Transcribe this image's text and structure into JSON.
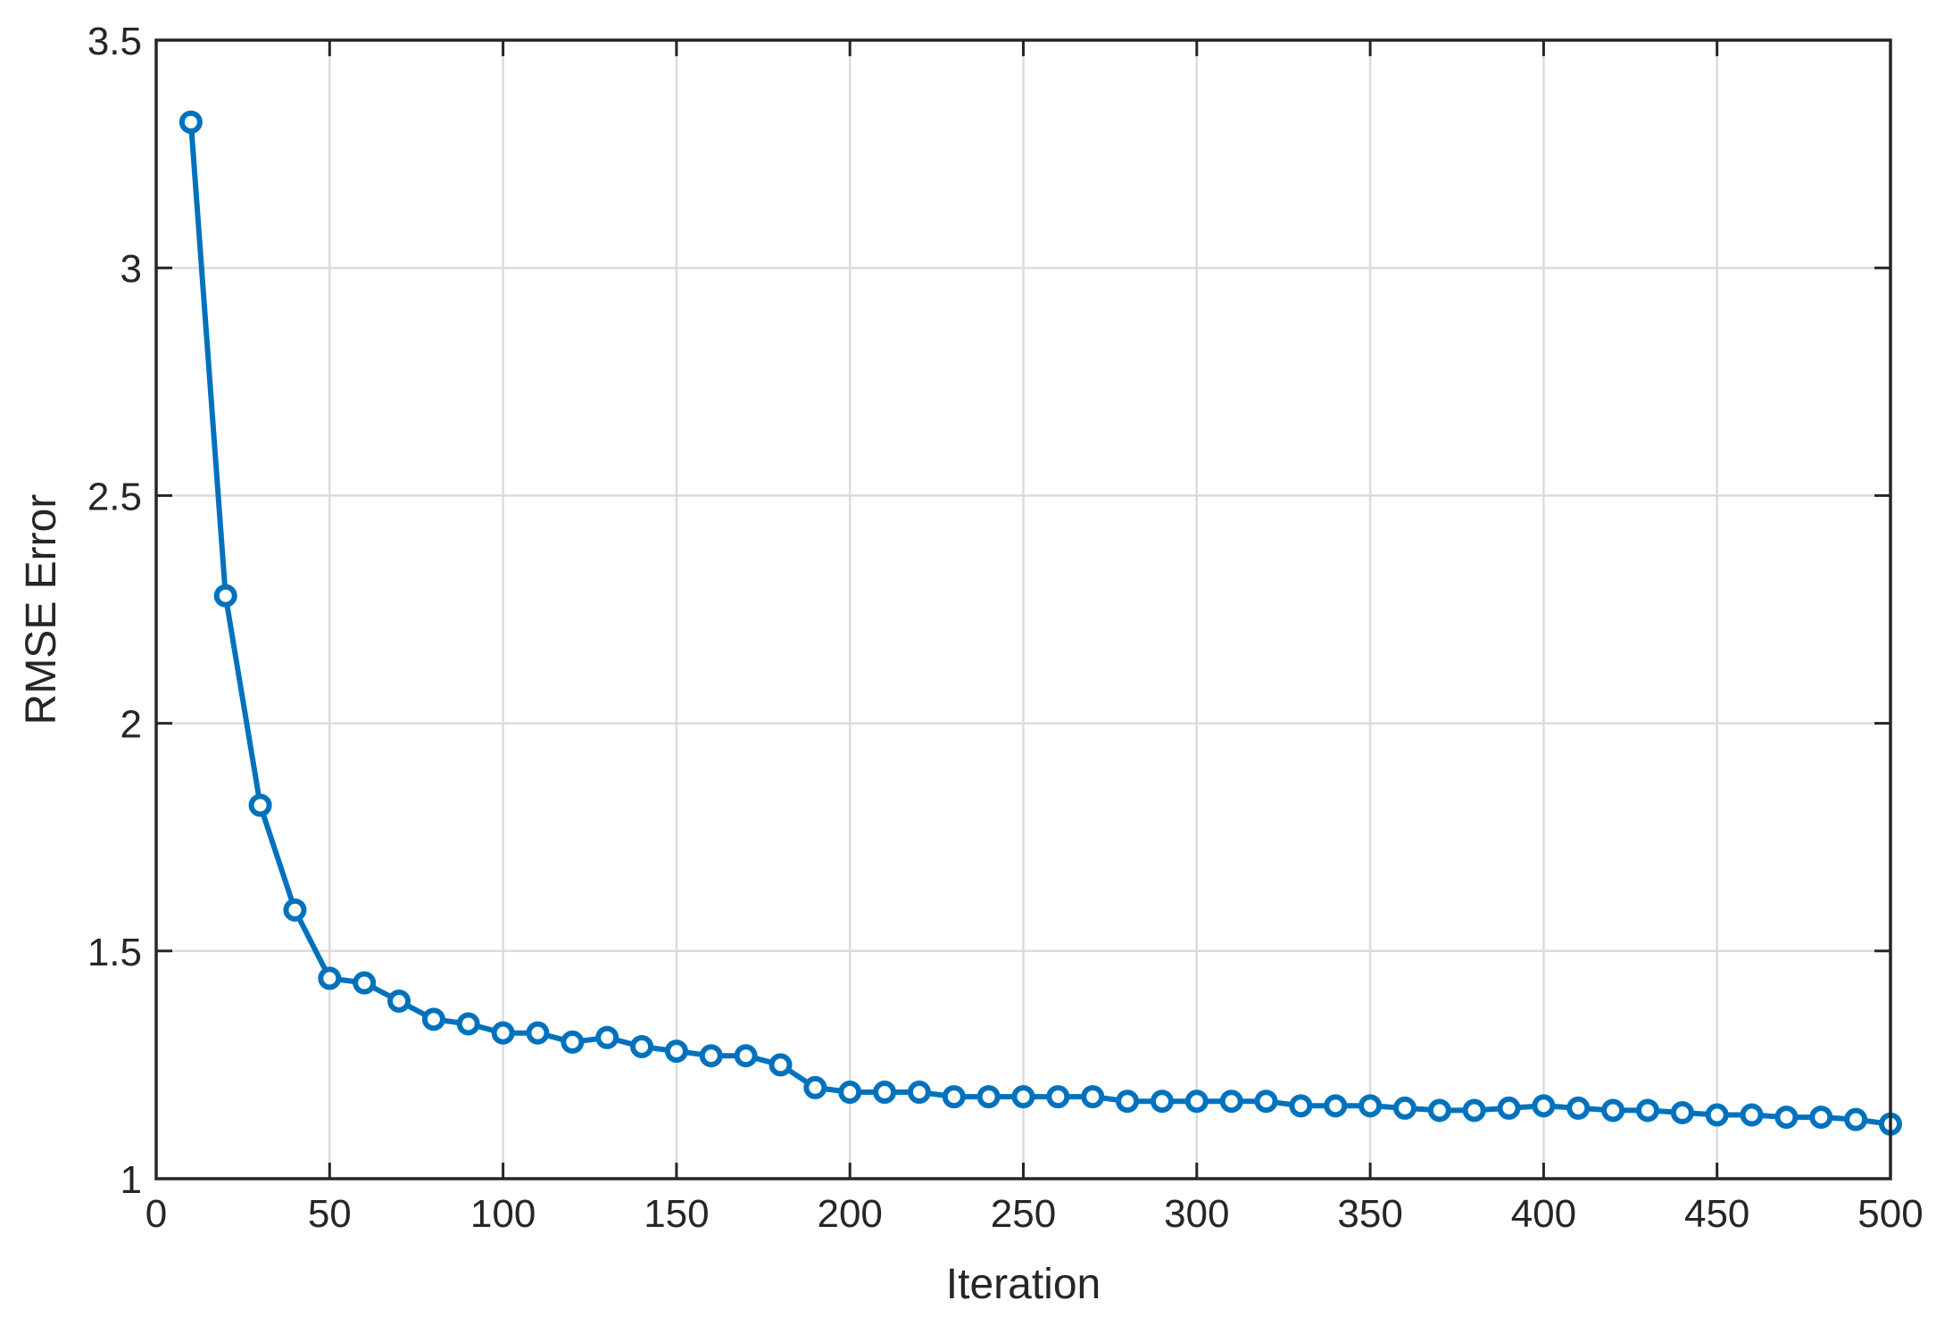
{
  "chart_data": {
    "type": "line",
    "title": "",
    "xlabel": "Iteration",
    "ylabel": "RMSE Error",
    "xlim": [
      0,
      500
    ],
    "ylim": [
      1,
      3.5
    ],
    "xticks": [
      0,
      50,
      100,
      150,
      200,
      250,
      300,
      350,
      400,
      450,
      500
    ],
    "yticks": [
      1,
      1.5,
      2,
      2.5,
      3,
      3.5
    ],
    "xtick_labels": [
      "0",
      "50",
      "100",
      "150",
      "200",
      "250",
      "300",
      "350",
      "400",
      "450",
      "500"
    ],
    "ytick_labels": [
      "1",
      "1.5",
      "2",
      "2.5",
      "3",
      "3.5"
    ],
    "grid": true,
    "legend": "none",
    "series": [
      {
        "color": "#0072BD",
        "marker": "circle",
        "x": [
          10,
          20,
          30,
          40,
          50,
          60,
          70,
          80,
          90,
          100,
          110,
          120,
          130,
          140,
          150,
          160,
          170,
          180,
          190,
          200,
          210,
          220,
          230,
          240,
          250,
          260,
          270,
          280,
          290,
          300,
          310,
          320,
          330,
          340,
          350,
          360,
          370,
          380,
          390,
          400,
          410,
          420,
          430,
          440,
          450,
          460,
          470,
          480,
          490,
          500
        ],
        "y": [
          3.32,
          2.28,
          1.82,
          1.59,
          1.44,
          1.43,
          1.39,
          1.35,
          1.34,
          1.32,
          1.32,
          1.3,
          1.31,
          1.29,
          1.28,
          1.27,
          1.27,
          1.25,
          1.2,
          1.19,
          1.19,
          1.19,
          1.18,
          1.18,
          1.18,
          1.18,
          1.18,
          1.17,
          1.17,
          1.17,
          1.17,
          1.17,
          1.16,
          1.16,
          1.16,
          1.155,
          1.15,
          1.15,
          1.155,
          1.16,
          1.155,
          1.15,
          1.15,
          1.145,
          1.14,
          1.14,
          1.135,
          1.135,
          1.13,
          1.12
        ]
      }
    ]
  }
}
